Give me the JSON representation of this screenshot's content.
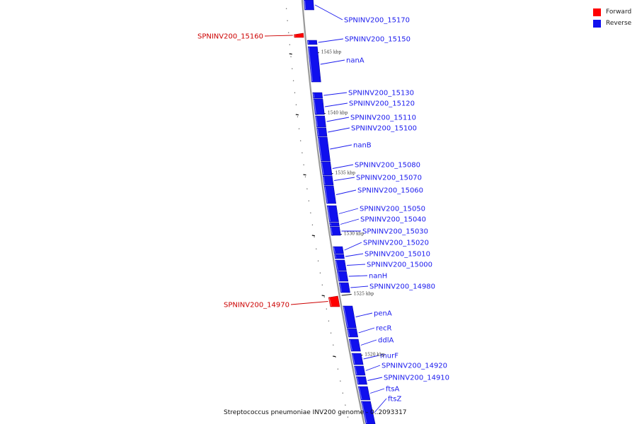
{
  "legend": {
    "forward_label": "Forward",
    "reverse_label": "Reverse"
  },
  "colors": {
    "forward": "#ff0000",
    "reverse": "#1010ee",
    "forward_label": "#cc0000",
    "reverse_label": "#1a1aee",
    "backbone": "#999999"
  },
  "caption": "Streptococcus pneumoniae INV200 genome - 0..2093317",
  "tick_labels": [
    "1545 kbp",
    "1540 kbp",
    "1535 kbp",
    "1530 kbp",
    "1525 kbp",
    "1520 kbp"
  ],
  "genes": [
    {
      "label": "SPNINV200_15170",
      "strand": "reverse"
    },
    {
      "label": "SPNINV200_15160",
      "strand": "forward"
    },
    {
      "label": "SPNINV200_15150",
      "strand": "reverse"
    },
    {
      "label": "nanA",
      "strand": "reverse"
    },
    {
      "label": "SPNINV200_15130",
      "strand": "reverse"
    },
    {
      "label": "SPNINV200_15120",
      "strand": "reverse"
    },
    {
      "label": "SPNINV200_15110",
      "strand": "reverse"
    },
    {
      "label": "SPNINV200_15100",
      "strand": "reverse"
    },
    {
      "label": "nanB",
      "strand": "reverse"
    },
    {
      "label": "SPNINV200_15080",
      "strand": "reverse"
    },
    {
      "label": "SPNINV200_15070",
      "strand": "reverse"
    },
    {
      "label": "SPNINV200_15060",
      "strand": "reverse"
    },
    {
      "label": "SPNINV200_15050",
      "strand": "reverse"
    },
    {
      "label": "SPNINV200_15040",
      "strand": "reverse"
    },
    {
      "label": "SPNINV200_15030",
      "strand": "reverse"
    },
    {
      "label": "SPNINV200_15020",
      "strand": "reverse"
    },
    {
      "label": "SPNINV200_15010",
      "strand": "reverse"
    },
    {
      "label": "SPNINV200_15000",
      "strand": "reverse"
    },
    {
      "label": "nanH",
      "strand": "reverse"
    },
    {
      "label": "SPNINV200_14980",
      "strand": "reverse"
    },
    {
      "label": "SPNINV200_14970",
      "strand": "forward"
    },
    {
      "label": "penA",
      "strand": "reverse"
    },
    {
      "label": "recR",
      "strand": "reverse"
    },
    {
      "label": "ddlA",
      "strand": "reverse"
    },
    {
      "label": "murF",
      "strand": "reverse"
    },
    {
      "label": "SPNINV200_14920",
      "strand": "reverse"
    },
    {
      "label": "SPNINV200_14910",
      "strand": "reverse"
    },
    {
      "label": "ftsA",
      "strand": "reverse"
    },
    {
      "label": "ftsZ",
      "strand": "reverse"
    }
  ]
}
